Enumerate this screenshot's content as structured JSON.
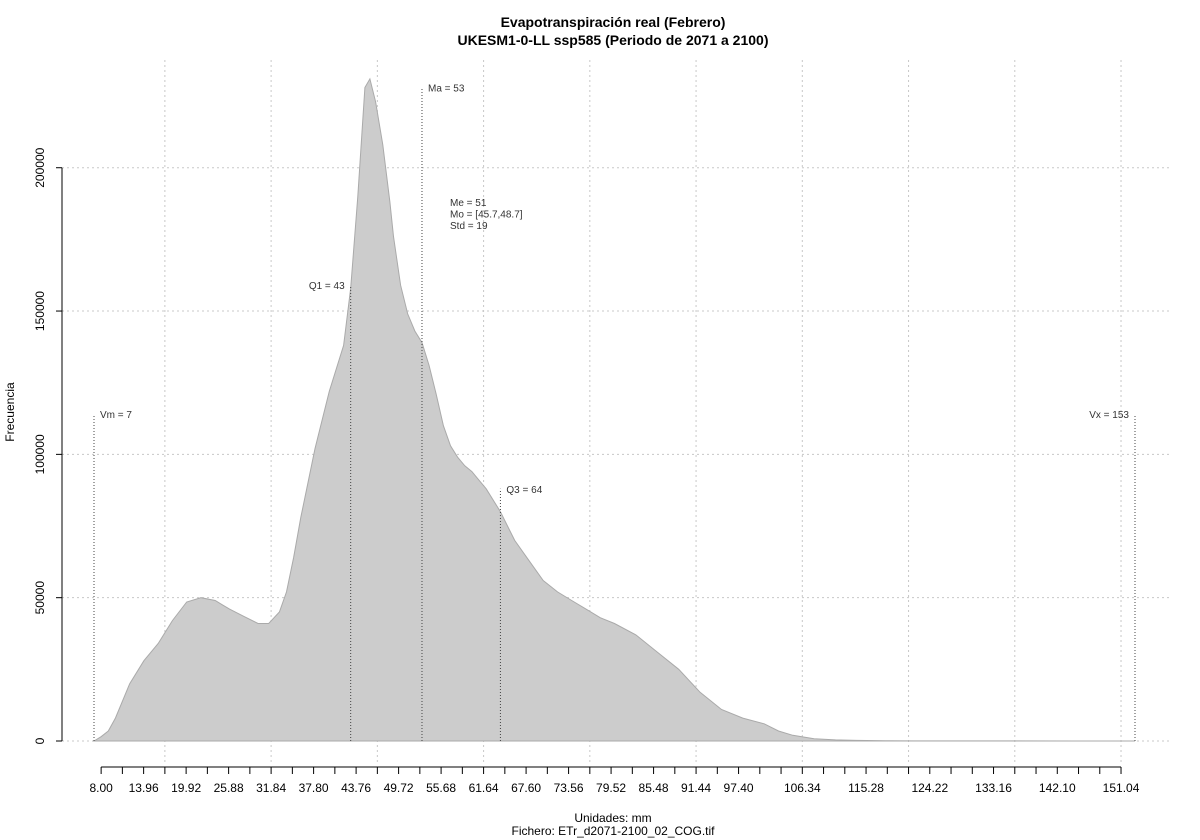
{
  "chart_data": {
    "type": "area",
    "title": "Evapotranspiración real (Febrero)",
    "subtitle": "UKESM1-0-LL ssp585 (Periodo de 2071 a 2100)",
    "xlabel": "Unidades: mm",
    "ylabel": "Frecuencia",
    "footer": "Fichero: ETr_d2071-2100_02_COG.tif",
    "xlim": [
      7,
      153
    ],
    "ylim": [
      0,
      232000
    ],
    "grid": true,
    "x_ticks": [
      "8.00",
      "13.96",
      "19.92",
      "25.88",
      "31.84",
      "37.80",
      "43.76",
      "49.72",
      "55.68",
      "61.64",
      "67.60",
      "73.56",
      "79.52",
      "85.48",
      "91.44",
      "97.40",
      "106.34",
      "115.28",
      "124.22",
      "133.16",
      "142.10",
      "151.04"
    ],
    "y_ticks": [
      "0",
      "50000",
      "100000",
      "150000",
      "200000"
    ],
    "x_grid": [
      16.94,
      31.84,
      46.74,
      61.64,
      76.54,
      91.44,
      106.34,
      121.24,
      136.14,
      151.04
    ],
    "y_grid": [
      0,
      50000,
      100000,
      150000,
      200000
    ],
    "density": {
      "x": [
        7.0,
        8.0,
        9.0,
        10.0,
        12.0,
        14.0,
        16.0,
        18.0,
        20.0,
        22.0,
        24.0,
        25.0,
        26.0,
        28.0,
        30.0,
        31.5,
        33.0,
        34.0,
        35.0,
        36.0,
        38.0,
        40.0,
        42.0,
        43.0,
        44.0,
        45.0,
        45.7,
        46.5,
        47.5,
        48.5,
        49.0,
        50.0,
        51.0,
        52.0,
        53.0,
        54.0,
        55.0,
        56.0,
        57.0,
        58.0,
        59.0,
        60.0,
        61.0,
        62.0,
        64.0,
        66.0,
        68.0,
        70.0,
        72.0,
        74.0,
        76.0,
        78.0,
        80.0,
        83.0,
        86.0,
        89.0,
        92.0,
        95.0,
        98.0,
        101.0,
        103.0,
        105.0,
        108.0,
        111.0,
        114.0,
        118.0,
        122.0,
        128.0,
        135.0,
        145.0,
        153.0
      ],
      "y": [
        0,
        1500,
        3500,
        8000,
        20000,
        28000,
        34000,
        42000,
        48500,
        50000,
        49000,
        47500,
        46000,
        43500,
        41000,
        41000,
        45000,
        52000,
        64000,
        78000,
        102000,
        122000,
        138000,
        158000,
        190000,
        228000,
        231000,
        223000,
        208000,
        188000,
        176000,
        159000,
        149000,
        143000,
        139000,
        131000,
        121000,
        110000,
        103000,
        99000,
        96000,
        94000,
        91000,
        88000,
        80000,
        70000,
        63000,
        56000,
        52000,
        49000,
        46000,
        43000,
        41000,
        37000,
        31000,
        25000,
        17000,
        11000,
        8000,
        6000,
        3500,
        2000,
        800,
        400,
        200,
        100,
        50,
        30,
        20,
        10,
        0
      ]
    },
    "vlines": [
      {
        "name": "Vm",
        "x": 7,
        "label": "Vm = 7",
        "top": 114000,
        "label_side": "right"
      },
      {
        "name": "Q1",
        "x": 43,
        "label": "Q1 = 43",
        "top": 159000,
        "label_side": "left"
      },
      {
        "name": "Ma",
        "x": 53,
        "label": "Ma = 53",
        "top": 228000,
        "label_side": "right"
      },
      {
        "name": "Q3",
        "x": 64,
        "label": "Q3 = 64",
        "top": 88000,
        "label_side": "right"
      },
      {
        "name": "Vx",
        "x": 153,
        "label": "Vx = 153",
        "top": 114000,
        "label_side": "left"
      }
    ],
    "stats": [
      "Me = 51",
      "Mo = [45.7,48.7]",
      "Std = 19"
    ],
    "colors": {
      "fill": "#cccccc",
      "stroke": "#aaaaaa",
      "grid": "#c8c8c8",
      "vline": "#444444"
    }
  }
}
